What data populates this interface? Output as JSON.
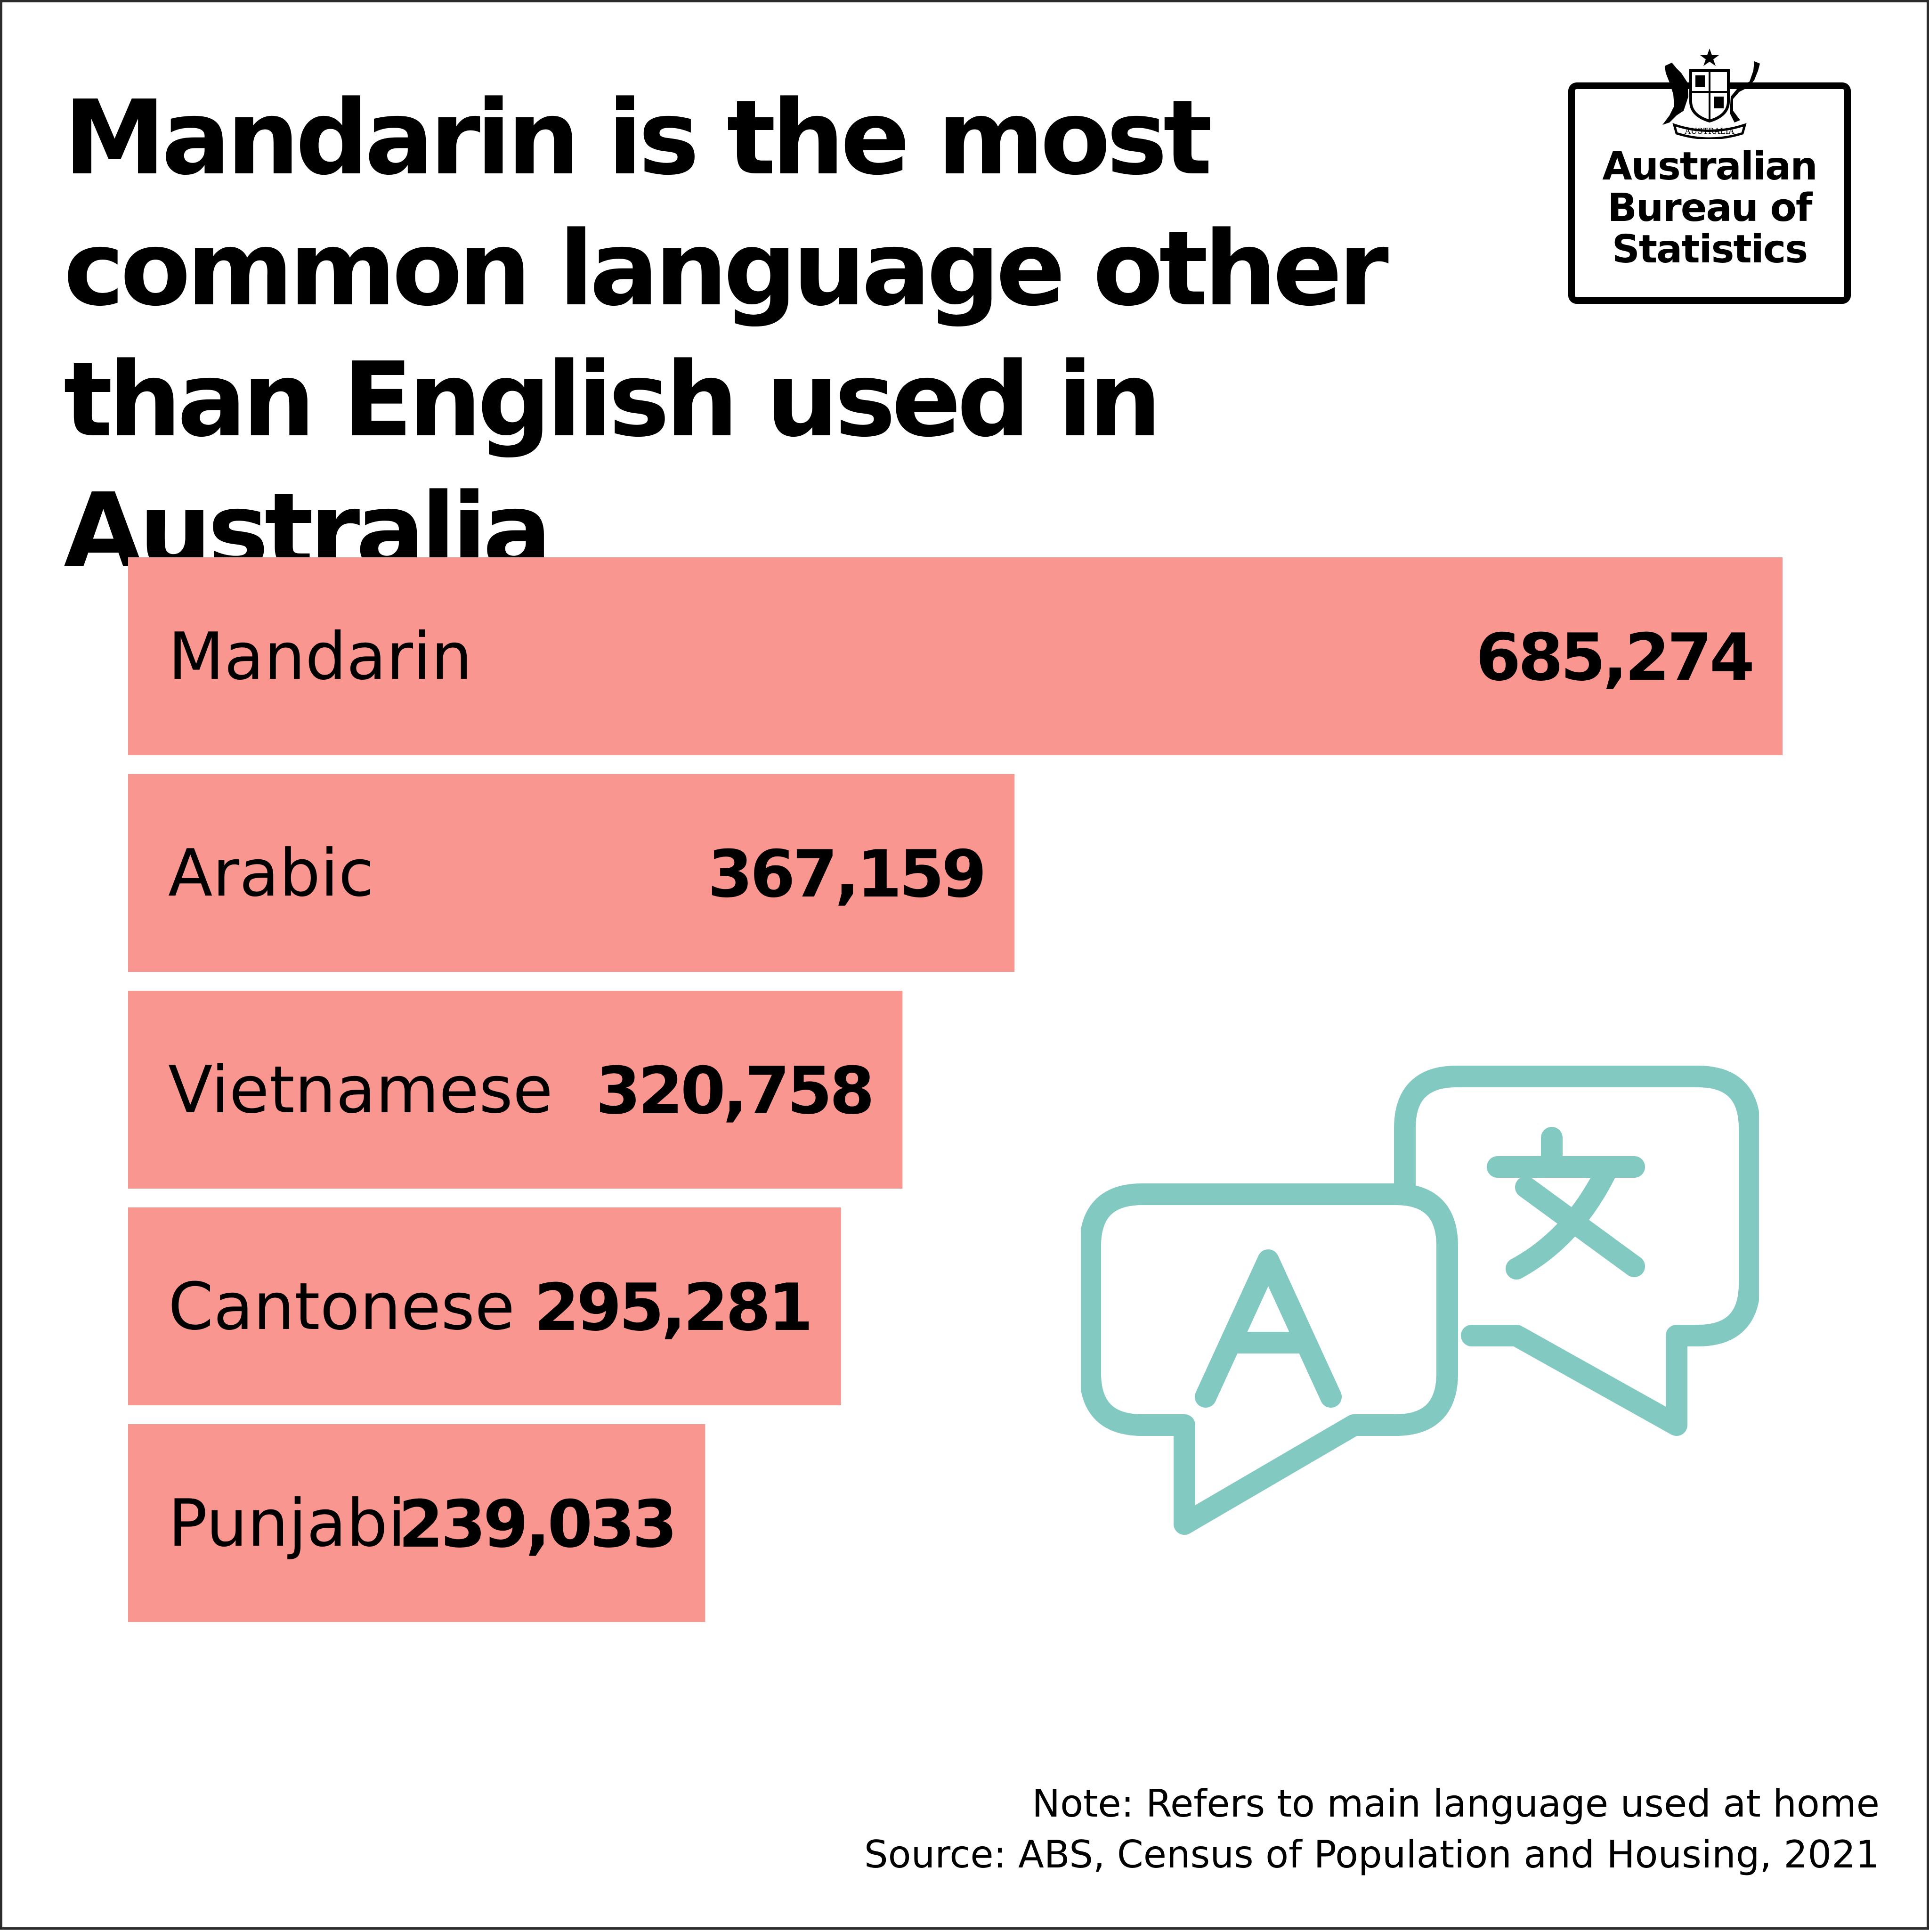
{
  "title": "Mandarin is the most common language other than English used in Australia",
  "logo": {
    "crest_label": "AUSTRALIA",
    "line1": "Australian",
    "line2": "Bureau of",
    "line3": "Statistics"
  },
  "colors": {
    "bar": "#f8968f",
    "icon": "#82c9c1",
    "text": "#000000"
  },
  "icon_name": "translate-speech-bubbles-icon",
  "chart_data": {
    "type": "bar",
    "orientation": "horizontal",
    "title": "Mandarin is the most common language other than English used in Australia",
    "categories": [
      "Mandarin",
      "Arabic",
      "Vietnamese",
      "Cantonese",
      "Punjabi"
    ],
    "values": [
      685274,
      367159,
      320758,
      295281,
      239033
    ],
    "value_labels": [
      "685,274",
      "367,159",
      "320,758",
      "295,281",
      "239,033"
    ],
    "xlabel": "",
    "ylabel": "",
    "xlim": [
      0,
      685274
    ],
    "grid": false,
    "legend": "none"
  },
  "footnote": {
    "note": "Note: Refers to main language used at home",
    "source": "Source: ABS, Census of Population and Housing, 2021"
  }
}
